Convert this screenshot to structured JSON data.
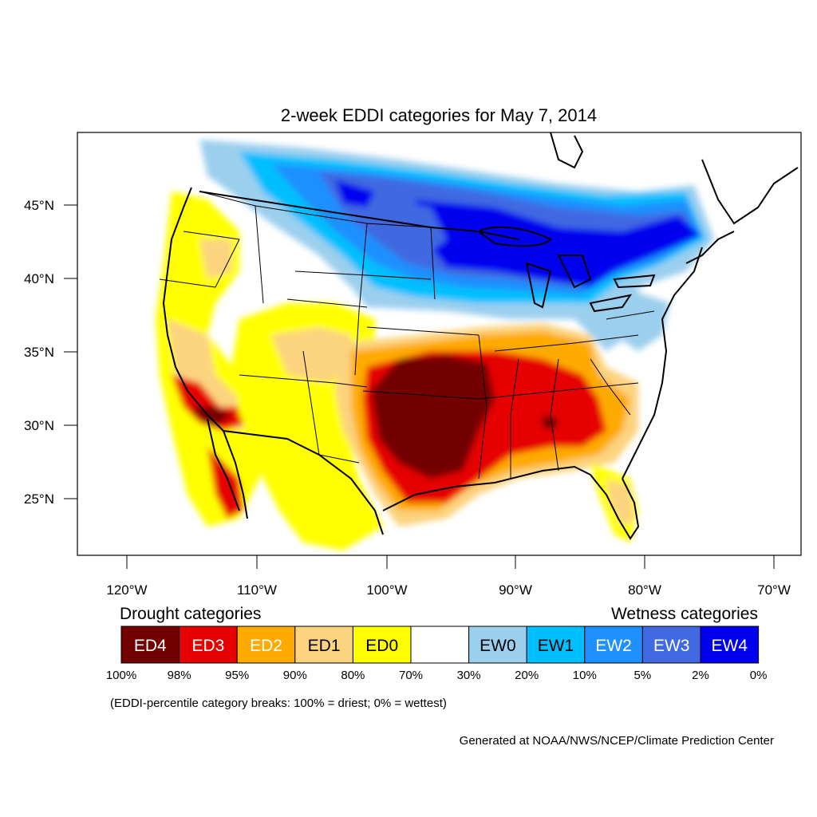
{
  "title": "2-week EDDI categories for May 7, 2014",
  "lat_labels": [
    "45°N",
    "40°N",
    "35°N",
    "30°N",
    "25°N"
  ],
  "lon_labels": [
    "120°W",
    "110°W",
    "100°W",
    "90°W",
    "80°W",
    "70°W"
  ],
  "legend": {
    "drought_heading": "Drought categories",
    "wetness_heading": "Wetness categories",
    "categories": [
      {
        "label": "ED4",
        "color": "#730000",
        "text_color": "#ffffff"
      },
      {
        "label": "ED3",
        "color": "#e60000",
        "text_color": "#ffffff"
      },
      {
        "label": "ED2",
        "color": "#ffaa00",
        "text_color": "#ffffff"
      },
      {
        "label": "ED1",
        "color": "#fcd37f",
        "text_color": "#000000"
      },
      {
        "label": "ED0",
        "color": "#ffff00",
        "text_color": "#000000"
      },
      {
        "label": "",
        "color": "#ffffff",
        "text_color": "#000000"
      },
      {
        "label": "EW0",
        "color": "#9bcfee",
        "text_color": "#000000"
      },
      {
        "label": "EW1",
        "color": "#00bfff",
        "text_color": "#000000"
      },
      {
        "label": "EW2",
        "color": "#1e90ff",
        "text_color": "#ffffff"
      },
      {
        "label": "EW3",
        "color": "#4169e1",
        "text_color": "#ffffff"
      },
      {
        "label": "EW4",
        "color": "#0000ee",
        "text_color": "#ffffff"
      }
    ],
    "breaks": [
      "100%",
      "98%",
      "95%",
      "90%",
      "80%",
      "70%",
      "30%",
      "20%",
      "10%",
      "5%",
      "2%",
      "0%"
    ]
  },
  "note": "(EDDI-percentile category breaks: 100% = driest; 0% = wettest)",
  "credit": "Generated at NOAA/NWS/NCEP/Climate Prediction Center"
}
